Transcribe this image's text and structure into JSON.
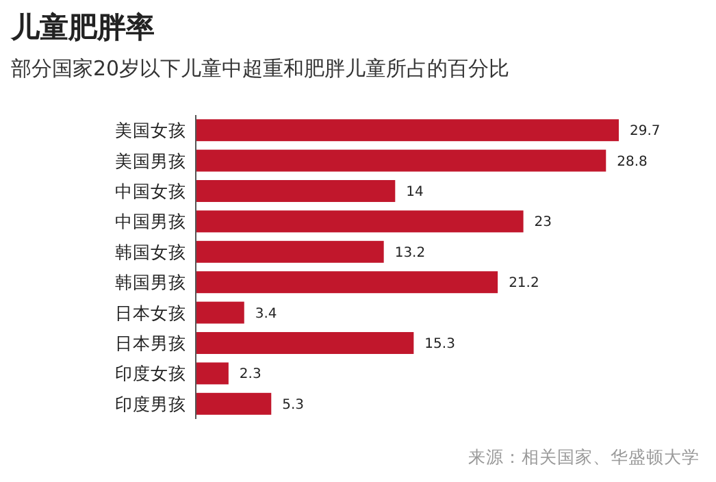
{
  "chart_data": {
    "type": "bar",
    "orientation": "horizontal",
    "title": "儿童肥胖率",
    "subtitle": "部分国家20岁以下儿童中超重和肥胖儿童所占的百分比",
    "categories": [
      "美国女孩",
      "美国男孩",
      "中国女孩",
      "中国男孩",
      "韩国女孩",
      "韩国男孩",
      "日本女孩",
      "日本男孩",
      "印度女孩",
      "印度男孩"
    ],
    "values": [
      29.7,
      28.8,
      14,
      23,
      13.2,
      21.2,
      3.4,
      15.3,
      2.3,
      5.3
    ],
    "color": "#c1172c",
    "data_labels": true,
    "annotations": [
      "来源：相关国家、华盛顿大学"
    ]
  }
}
